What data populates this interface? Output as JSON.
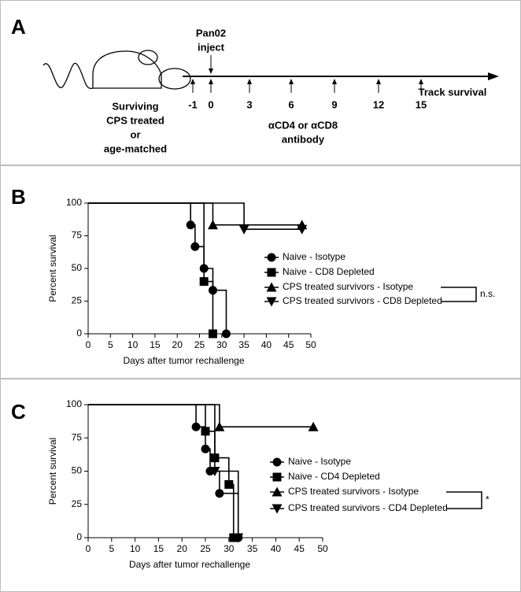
{
  "panel_a": {
    "label": "A",
    "inject_lines": [
      "Pan02",
      "inject"
    ],
    "timeline_ticks": [
      "-1",
      "0",
      "3",
      "6",
      "9",
      "12",
      "15"
    ],
    "track": "Track survival",
    "mouse_lines": [
      "Surviving",
      "CPS treated",
      "or",
      "age-matched"
    ],
    "antibody_lines": [
      "αCD4 or αCD8",
      "antibody"
    ]
  },
  "chart_data": [
    {
      "type": "line",
      "panel_label": "B",
      "step": true,
      "y_label": "Percent survival",
      "x_label": "Days after tumor rechallenge",
      "xlim": [
        0,
        50
      ],
      "xticks": [
        0,
        5,
        10,
        15,
        20,
        25,
        30,
        35,
        40,
        45,
        50
      ],
      "ylim": [
        0,
        100
      ],
      "yticks": [
        0,
        25,
        50,
        75,
        100
      ],
      "annotation": "n.s.",
      "series": [
        {
          "name": "Naive - Isotype",
          "color": "#000000",
          "marker": "circle",
          "x": [
            0,
            23,
            24,
            26,
            28,
            31
          ],
          "values": [
            100,
            83.3,
            66.7,
            50,
            33.3,
            0
          ]
        },
        {
          "name": "Naive - CD8 Depleted",
          "color": "#000000",
          "marker": "square",
          "x": [
            0,
            26,
            28
          ],
          "values": [
            100,
            40,
            0
          ]
        },
        {
          "name": "CPS treated survivors - Isotype",
          "color": "#000000",
          "marker": "triangle-up",
          "x": [
            0,
            28,
            48
          ],
          "values": [
            100,
            83.3,
            83.3
          ]
        },
        {
          "name": "CPS treated survivors - CD8 Depleted",
          "color": "#000000",
          "marker": "triangle-down",
          "x": [
            0,
            35,
            48
          ],
          "values": [
            100,
            80,
            80
          ]
        }
      ]
    },
    {
      "type": "line",
      "panel_label": "C",
      "step": true,
      "y_label": "Percent survival",
      "x_label": "Days after tumor rechallenge",
      "xlim": [
        0,
        50
      ],
      "xticks": [
        0,
        5,
        10,
        15,
        20,
        25,
        30,
        35,
        40,
        45,
        50
      ],
      "ylim": [
        0,
        100
      ],
      "yticks": [
        0,
        25,
        50,
        75,
        100
      ],
      "annotation": "*",
      "series": [
        {
          "name": "Naive - Isotype",
          "color": "#000000",
          "marker": "circle",
          "x": [
            0,
            23,
            25,
            26,
            28,
            32
          ],
          "values": [
            100,
            83.3,
            66.7,
            50,
            33.3,
            0
          ]
        },
        {
          "name": "Naive - CD4 Depleted",
          "color": "#000000",
          "marker": "square",
          "x": [
            0,
            25,
            27,
            30,
            31
          ],
          "values": [
            100,
            80,
            60,
            40,
            0
          ]
        },
        {
          "name": "CPS treated survivors - Isotype",
          "color": "#000000",
          "marker": "triangle-up",
          "x": [
            0,
            28,
            48
          ],
          "values": [
            100,
            83.3,
            83.3
          ]
        },
        {
          "name": "CPS treated survivors - CD4 Depleted",
          "color": "#000000",
          "marker": "triangle-down",
          "x": [
            0,
            27,
            32
          ],
          "values": [
            100,
            50,
            0
          ]
        }
      ]
    }
  ]
}
